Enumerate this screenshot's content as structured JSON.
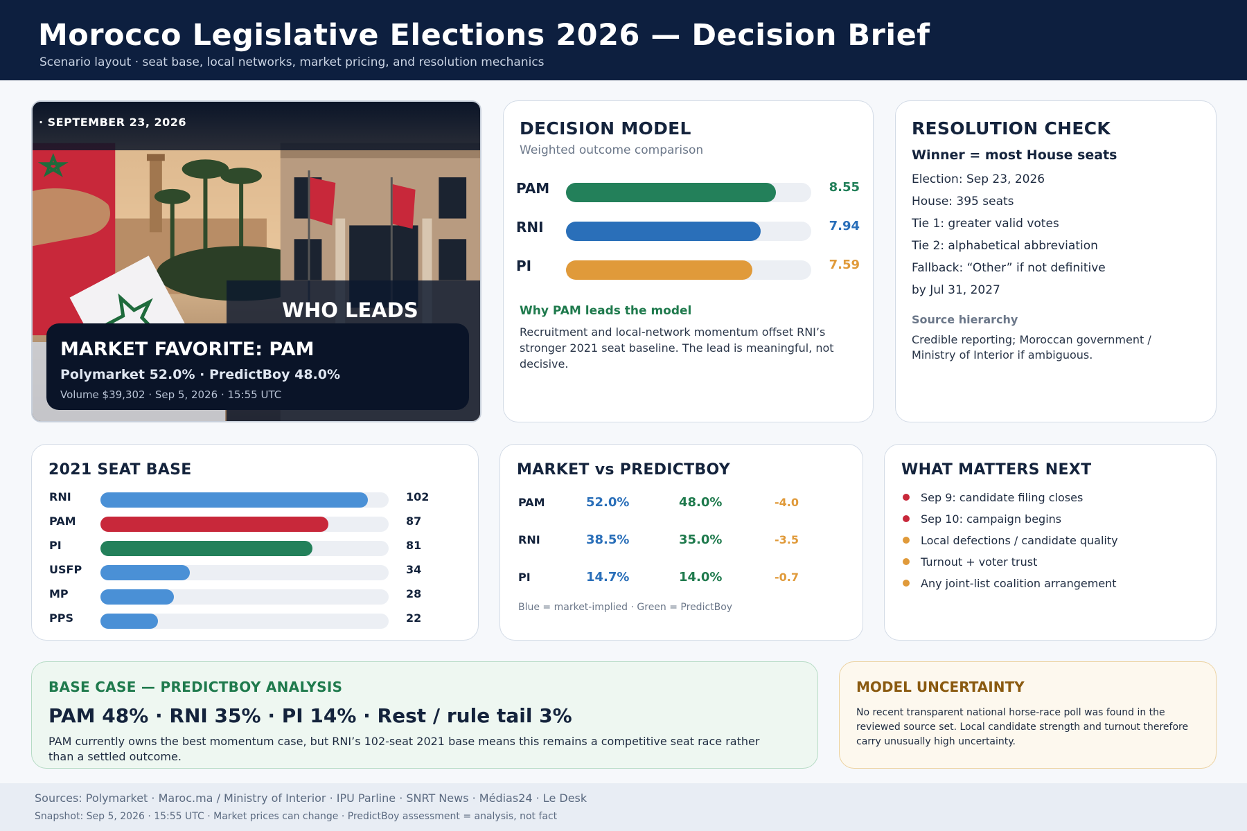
{
  "header": {
    "title": "Morocco Legislative Elections 2026 — Decision Brief",
    "subtitle": "Scenario layout · seat base, local networks, market pricing, and resolution mechanics"
  },
  "hero": {
    "date": "· SEPTEMBER 23, 2026",
    "who_leads": "WHO LEADS",
    "favorite": "MARKET FAVORITE: PAM",
    "odds": "Polymarket 52.0%  ·  PredictBoy 48.0%",
    "volume": "Volume $39,302 · Sep 5, 2026 · 15:55 UTC"
  },
  "decision_model": {
    "title": "DECISION MODEL",
    "subtitle": "Weighted outcome comparison",
    "scale_max": 10,
    "rows": [
      {
        "label": "PAM",
        "value": "8.55",
        "score": 8.55,
        "color": "#23805a"
      },
      {
        "label": "RNI",
        "value": "7.94",
        "score": 7.94,
        "color": "#2a6fb9"
      },
      {
        "label": "PI",
        "value": "7.59",
        "score": 7.59,
        "color": "#e09a3a"
      }
    ],
    "why_title": "Why PAM leads the model",
    "why_text": "Recruitment and local-network momentum offset RNI’s stronger 2021 seat baseline. The lead is meaningful, not decisive."
  },
  "resolution": {
    "title": "RESOLUTION CHECK",
    "winner": "Winner = most House seats",
    "lines": [
      "Election: Sep 23, 2026",
      "House: 395 seats",
      "Tie 1: greater valid votes",
      "Tie 2: alphabetical abbreviation",
      "Fallback: “Other” if not definitive",
      "by Jul 31, 2027"
    ],
    "source_title": "Source hierarchy",
    "source_text": "Credible reporting; Moroccan government / Ministry of Interior if ambiguous."
  },
  "seat_base": {
    "title": "2021 SEAT BASE",
    "scale_max": 110,
    "rows": [
      {
        "label": "RNI",
        "value": "102",
        "seats": 102,
        "color": "#4a90d6"
      },
      {
        "label": "PAM",
        "value": "87",
        "seats": 87,
        "color": "#c8283a"
      },
      {
        "label": "PI",
        "value": "81",
        "seats": 81,
        "color": "#23805a"
      },
      {
        "label": "USFP",
        "value": "34",
        "seats": 34,
        "color": "#4a90d6"
      },
      {
        "label": "MP",
        "value": "28",
        "seats": 28,
        "color": "#4a90d6"
      },
      {
        "label": "PPS",
        "value": "22",
        "seats": 22,
        "color": "#4a90d6"
      }
    ]
  },
  "market_vs": {
    "title": "MARKET vs PREDICTBOY",
    "rows": [
      {
        "party": "PAM",
        "market": "52.0%",
        "predictboy": "48.0%",
        "delta": "-4.0"
      },
      {
        "party": "RNI",
        "market": "38.5%",
        "predictboy": "35.0%",
        "delta": "-3.5"
      },
      {
        "party": "PI",
        "market": "14.7%",
        "predictboy": "14.0%",
        "delta": "-0.7"
      }
    ],
    "note": "Blue = market-implied · Green = PredictBoy"
  },
  "what_next": {
    "title": "WHAT MATTERS NEXT",
    "items": [
      {
        "text": "Sep 9: candidate filing closes",
        "color": "#c8283a"
      },
      {
        "text": "Sep 10: campaign begins",
        "color": "#c8283a"
      },
      {
        "text": "Local defections / candidate quality",
        "color": "#e09a3a"
      },
      {
        "text": "Turnout + voter trust",
        "color": "#e09a3a"
      },
      {
        "text": "Any joint-list coalition arrangement",
        "color": "#e09a3a"
      }
    ]
  },
  "base_case": {
    "title": "BASE CASE — PREDICTBOY ANALYSIS",
    "headline": "PAM 48%  ·  RNI 35%  ·  PI 14%  ·  Rest / rule tail 3%",
    "text": "PAM currently owns the best momentum case, but RNI’s 102-seat 2021 base means this remains a competitive seat race rather than a settled outcome."
  },
  "uncertainty": {
    "title": "MODEL UNCERTAINTY",
    "text": "No recent transparent national horse-race poll was found in the reviewed source set. Local candidate strength and turnout therefore carry unusually high uncertainty."
  },
  "footer": {
    "sources": "Sources: Polymarket · Maroc.ma / Ministry of Interior · IPU Parline · SNRT News · Médias24 · Le Desk",
    "snapshot": "Snapshot: Sep 5, 2026 · 15:55 UTC · Market prices can change · PredictBoy assessment = analysis, not fact"
  }
}
